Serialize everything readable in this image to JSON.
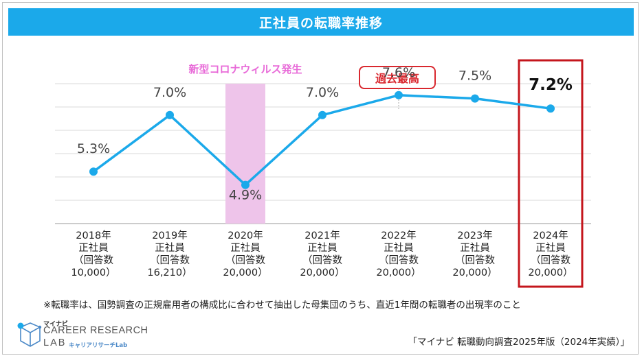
{
  "page_title": "正社員の転職率推移",
  "chart_data": {
    "type": "line",
    "title": "正社員の転職率推移",
    "unit": "%",
    "categories": [
      [
        "2018年",
        "正社員",
        "（回答数",
        "10,000）"
      ],
      [
        "2019年",
        "正社員",
        "（回答数",
        "16,210）"
      ],
      [
        "2020年",
        "正社員",
        "（回答数",
        "20,000）"
      ],
      [
        "2021年",
        "正社員",
        "（回答数",
        "20,000）"
      ],
      [
        "2022年",
        "正社員",
        "（回答数",
        "20,000）"
      ],
      [
        "2023年",
        "正社員",
        "（回答数",
        "20,000）"
      ],
      [
        "2024年",
        "正社員",
        "（回答数",
        "20,000）"
      ]
    ],
    "values": [
      5.3,
      7.0,
      4.9,
      7.0,
      7.6,
      7.5,
      7.2
    ],
    "value_labels": [
      "5.3%",
      "7.0%",
      "4.9%",
      "7.0%",
      "7.6%",
      "7.5%",
      "7.2%"
    ],
    "ylim": [
      0,
      10
    ],
    "grid": true,
    "line_color": "#1ba9ea",
    "highlight_band": {
      "index": 2,
      "label": "新型コロナウィルス発生",
      "color": "#eec4ea",
      "label_color": "#e86ad8"
    },
    "peak_callout": {
      "index": 4,
      "label": "過去最高",
      "color": "#d9282f"
    },
    "latest_box": {
      "index": 6,
      "color": "#c4161c"
    }
  },
  "footnote": "※転職率は、国勢調査の正規雇用者の構成比に合わせて抽出した母集団のうち、直近1年間の転職者の出現率のこと",
  "source": "「マイナビ 転職動向調査2025年版（2024年実績）」",
  "logo": {
    "brand": "マイナビ",
    "line1": "CAREER RESEARCH",
    "line2": "LAB",
    "sub": "キャリアリサーチLab"
  }
}
